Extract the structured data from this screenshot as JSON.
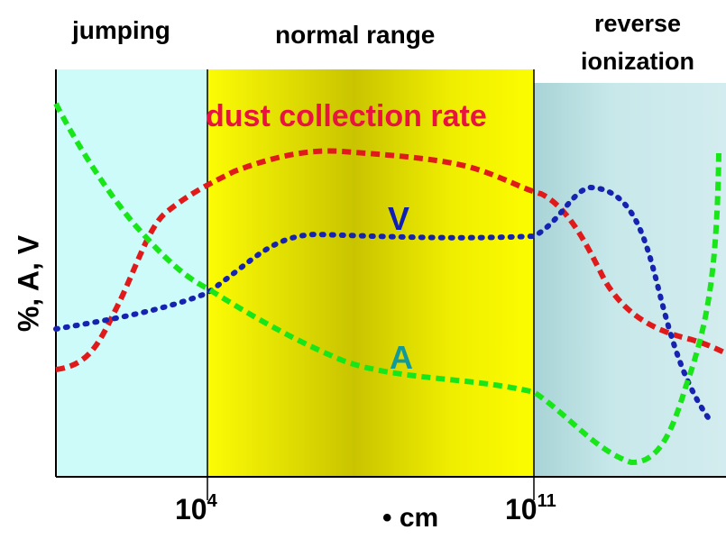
{
  "regions": [
    {
      "label_lines": [
        "jumping"
      ]
    },
    {
      "label_lines": [
        "normal range"
      ]
    },
    {
      "label_lines": [
        "reverse",
        "ionization"
      ]
    }
  ],
  "y_axis_title": "%, A, V",
  "x_ticks": [
    {
      "base": "10",
      "exp": "4"
    },
    {
      "base": "10",
      "exp": "11"
    }
  ],
  "x_axis_title": "• cm",
  "series": [
    {
      "name": "dust collection rate",
      "color": "#e8133f",
      "line_color": "#e01a1a",
      "style": "dashed"
    },
    {
      "name": "V",
      "color": "#0f1fb5",
      "line_color": "#1523b0",
      "style": "dotted"
    },
    {
      "name": "A",
      "color": "#129a9a",
      "line_color": "#19e619",
      "style": "dashed"
    }
  ],
  "colors": {
    "jumping_bg": "#ccfbfa",
    "normal_bg": "#f9f900",
    "normal_bg_dark": "#c9c400",
    "reverse_bg": "#b5dde0"
  }
}
